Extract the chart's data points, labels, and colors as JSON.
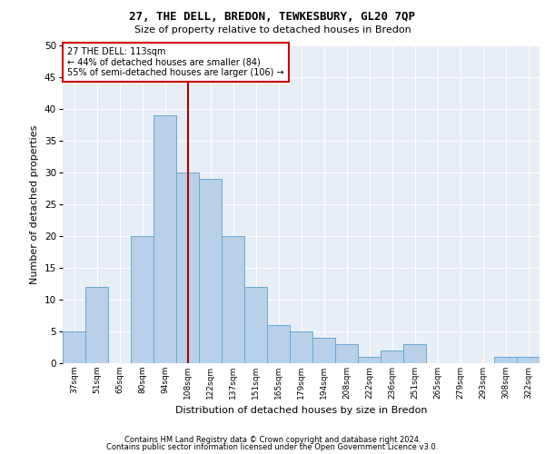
{
  "title1": "27, THE DELL, BREDON, TEWKESBURY, GL20 7QP",
  "title2": "Size of property relative to detached houses in Bredon",
  "xlabel": "Distribution of detached houses by size in Bredon",
  "ylabel": "Number of detached properties",
  "categories": [
    "37sqm",
    "51sqm",
    "65sqm",
    "80sqm",
    "94sqm",
    "108sqm",
    "122sqm",
    "137sqm",
    "151sqm",
    "165sqm",
    "179sqm",
    "194sqm",
    "208sqm",
    "222sqm",
    "236sqm",
    "251sqm",
    "265sqm",
    "279sqm",
    "293sqm",
    "308sqm",
    "322sqm"
  ],
  "values": [
    5,
    12,
    0,
    20,
    39,
    30,
    29,
    20,
    12,
    6,
    5,
    4,
    3,
    1,
    2,
    3,
    0,
    0,
    0,
    1,
    1
  ],
  "bar_color": "#b8d0e8",
  "bar_edge_color": "#6aaad4",
  "background_color": "#e8eef6",
  "grid_color": "#ffffff",
  "vline_x_index": 5.0,
  "vline_color": "#aa0000",
  "annotation_text": "27 THE DELL: 113sqm\n← 44% of detached houses are smaller (84)\n55% of semi-detached houses are larger (106) →",
  "annotation_box_facecolor": "#ffffff",
  "annotation_box_edgecolor": "#cc0000",
  "ylim": [
    0,
    50
  ],
  "yticks": [
    0,
    5,
    10,
    15,
    20,
    25,
    30,
    35,
    40,
    45,
    50
  ],
  "footer1": "Contains HM Land Registry data © Crown copyright and database right 2024.",
  "footer2": "Contains public sector information licensed under the Open Government Licence v3.0.",
  "fig_width": 6.0,
  "fig_height": 5.0,
  "fig_dpi": 100
}
